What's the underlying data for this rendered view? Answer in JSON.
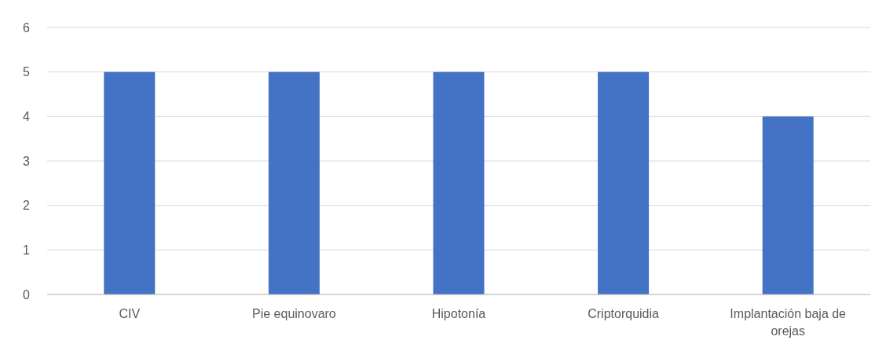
{
  "chart_data": {
    "type": "bar",
    "categories": [
      "CIV",
      "Pie equinovaro",
      "Hipotonía",
      "Criptorquidia",
      "Implantación baja de orejas"
    ],
    "values": [
      5,
      5,
      5,
      5,
      4
    ],
    "color": "#4472c4",
    "ylim": [
      0,
      6
    ],
    "yticks": [
      0,
      1,
      2,
      3,
      4,
      5,
      6
    ],
    "grid": "y"
  }
}
